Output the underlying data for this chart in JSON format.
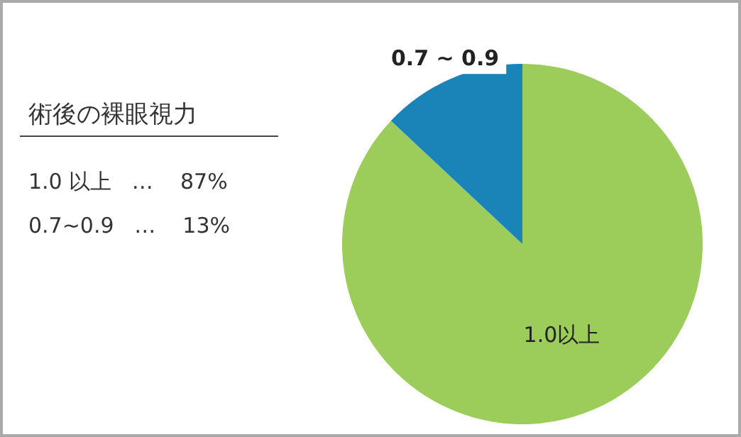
{
  "chart_data": {
    "type": "pie",
    "title": "術後の裸眼視力",
    "categories": [
      "1.0以上",
      "0.7 ~ 0.9"
    ],
    "values": [
      87,
      13
    ],
    "colors": [
      "#9ccc5a",
      "#1a84b8"
    ],
    "annotations": [
      "1.0 以上   …    87%",
      "0.7~0.9   …    13%"
    ]
  }
}
